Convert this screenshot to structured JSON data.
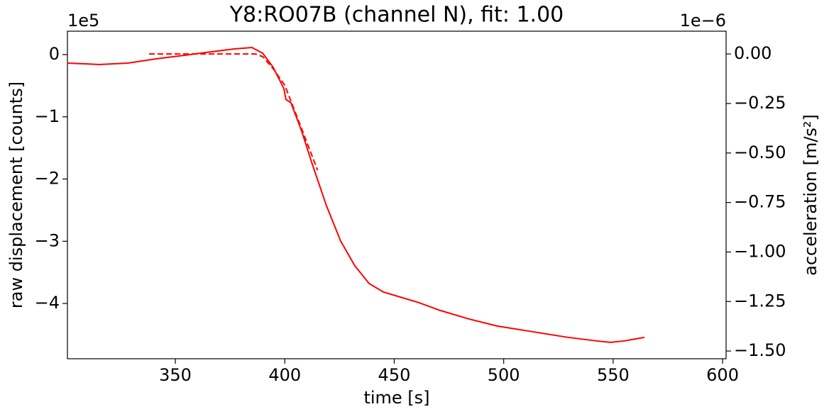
{
  "chart_data": {
    "type": "line",
    "title": "Y8:RO07B  (channel N), fit: 1.00",
    "x_label": "time [s]",
    "y_label": "raw displacement [counts]",
    "y2_label": "acceleration [m/s²]",
    "y_offset_label": "1e5",
    "y2_offset_label": "1e−6",
    "xlim": [
      300.7,
      601.6
    ],
    "xticks": [
      350,
      400,
      450,
      500,
      550,
      600
    ],
    "ylim": [
      -488800,
      37600
    ],
    "yticks": [
      {
        "value": 0,
        "label": "0"
      },
      {
        "value": -100000,
        "label": "−1"
      },
      {
        "value": -200000,
        "label": "−2"
      },
      {
        "value": -300000,
        "label": "−3"
      },
      {
        "value": -400000,
        "label": "−4"
      }
    ],
    "y2lim": [
      -1.539e-06,
      1.15e-07
    ],
    "y2ticks": [
      {
        "value": 0,
        "label": "0.00"
      },
      {
        "value": -2.5e-07,
        "label": "−0.25"
      },
      {
        "value": -5e-07,
        "label": "−0.50"
      },
      {
        "value": -7.5e-07,
        "label": "−0.75"
      },
      {
        "value": -1e-06,
        "label": "−1.00"
      },
      {
        "value": -1.25e-06,
        "label": "−1.25"
      },
      {
        "value": -1.5e-06,
        "label": "−1.50"
      }
    ],
    "grid": false,
    "series": [
      {
        "color": "#ff0000",
        "linestyle": "solid",
        "axis": "y",
        "x": [
          300.7,
          315.3,
          328.3,
          341.2,
          354.2,
          364,
          376.9,
          385,
          389.9,
          394.7,
          397.5,
          399.6,
          400.5,
          402.8,
          407.7,
          412.6,
          419,
          425.5,
          432,
          438.5,
          445,
          451.5,
          461.2,
          471,
          484,
          497,
          513.1,
          529.3,
          542.3,
          548.8,
          555.2,
          564.3
        ],
        "values": [
          -13700,
          -15900,
          -13700,
          -6800,
          -1100,
          3400,
          9100,
          11400,
          2300,
          -20500,
          -40000,
          -54700,
          -72000,
          -77400,
          -123000,
          -176500,
          -242600,
          -299500,
          -339400,
          -367900,
          -381500,
          -388400,
          -398600,
          -411200,
          -424800,
          -436200,
          -445300,
          -454400,
          -460100,
          -462400,
          -460100,
          -454400
        ]
      },
      {
        "color": "#ff0000",
        "linestyle": "dashed",
        "axis": "y2",
        "x": [
          338.0,
          386.6,
          390,
          395,
          400,
          405,
          410,
          415
        ],
        "values": [
          0,
          0,
          -1.4e-08,
          -7.9e-08,
          -1.58e-07,
          -3e-07,
          -4.44e-07,
          -5.87e-07
        ]
      }
    ]
  }
}
